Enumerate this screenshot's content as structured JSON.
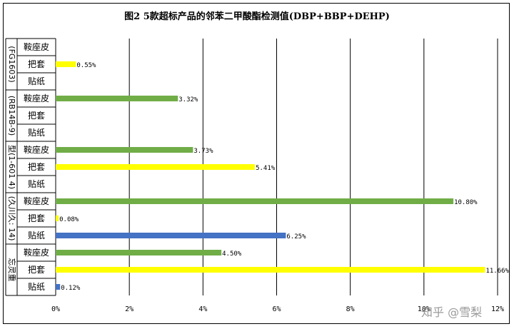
{
  "chart_data": {
    "type": "bar",
    "orientation": "horizontal",
    "title": "图2 5款超标产品的邻苯二甲酸酯检测值(DBP+BBP+DEHP)",
    "xlabel": "",
    "ylabel": "",
    "xlim": [
      0,
      12
    ],
    "x_ticks": [
      "0%",
      "2%",
      "4%",
      "6%",
      "8%",
      "10%",
      "12%"
    ],
    "grid": true,
    "legend": "none",
    "groups": [
      {
        "name": "(FG1603)",
        "items": [
          {
            "label": "鞍座皮",
            "value": null,
            "value_label": "",
            "color": "#70ad47"
          },
          {
            "label": "把套",
            "value": 0.55,
            "value_label": "0.55%",
            "color": "#ffff00"
          },
          {
            "label": "贴纸",
            "value": null,
            "value_label": "",
            "color": "#4472c4"
          }
        ]
      },
      {
        "name": "(RB14B-9)",
        "items": [
          {
            "label": "鞍座皮",
            "value": 3.32,
            "value_label": "3.32%",
            "color": "#70ad47"
          },
          {
            "label": "把套",
            "value": null,
            "value_label": "",
            "color": "#ffff00"
          },
          {
            "label": "贴纸",
            "value": null,
            "value_label": "",
            "color": "#4472c4"
          }
        ]
      },
      {
        "name": "型(1-601 4)",
        "items": [
          {
            "label": "鞍座皮",
            "value": 3.73,
            "value_label": "3.73%",
            "color": "#70ad47"
          },
          {
            "label": "把套",
            "value": 5.41,
            "value_label": "5.41%",
            "color": "#ffff00"
          },
          {
            "label": "贴纸",
            "value": null,
            "value_label": "",
            "color": "#4472c4"
          }
        ]
      },
      {
        "name": "(久川久: 14)",
        "items": [
          {
            "label": "鞍座皮",
            "value": 10.8,
            "value_label": "10.80%",
            "color": "#70ad47"
          },
          {
            "label": "把套",
            "value": 0.08,
            "value_label": "0.08%",
            "color": "#ffff00"
          },
          {
            "label": "贴纸",
            "value": 6.25,
            "value_label": "6.25%",
            "color": "#4472c4"
          }
        ]
      },
      {
        "name": "忘灵重",
        "items": [
          {
            "label": "鞍座皮",
            "value": 4.5,
            "value_label": "4.50%",
            "color": "#70ad47"
          },
          {
            "label": "把套",
            "value": 11.66,
            "value_label": "11.66%",
            "color": "#ffff00"
          },
          {
            "label": "贴纸",
            "value": 0.12,
            "value_label": "0.12%",
            "color": "#4472c4"
          }
        ]
      }
    ]
  },
  "watermark": "知乎 @雪梨"
}
